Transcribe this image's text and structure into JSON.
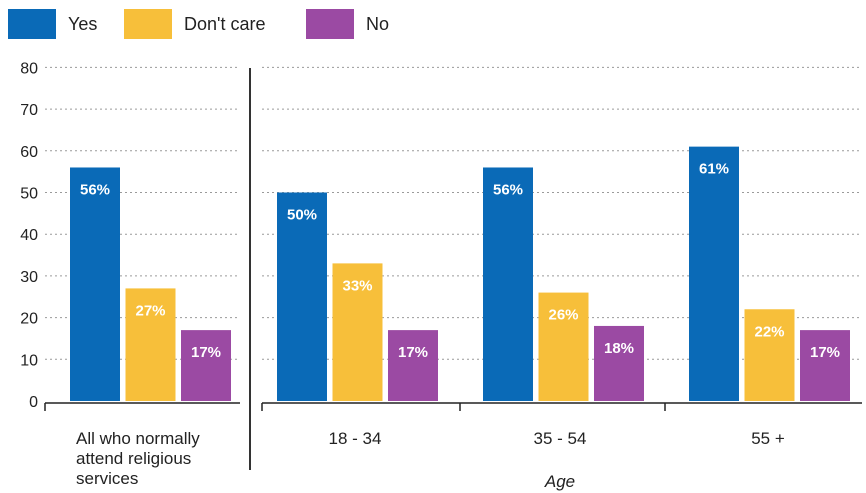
{
  "chart_data": {
    "type": "bar",
    "categories": [
      "All who normally attend religious services",
      "18 - 34",
      "35 - 54",
      "55 +"
    ],
    "series": [
      {
        "name": "Yes",
        "color": "#0a6ab7",
        "values": [
          56,
          50,
          56,
          61
        ],
        "labels": [
          "56%",
          "50%",
          "56%",
          "61%"
        ]
      },
      {
        "name": "Don't care",
        "color": "#f7bf3a",
        "values": [
          27,
          33,
          26,
          22
        ],
        "labels": [
          "27%",
          "33%",
          "26%",
          "22%"
        ]
      },
      {
        "name": "No",
        "color": "#9b4aa3",
        "values": [
          17,
          17,
          18,
          17
        ],
        "labels": [
          "17%",
          "17%",
          "18%",
          "17%"
        ]
      }
    ],
    "category_label_lines": [
      [
        "All who normally",
        "attend religious",
        "services"
      ],
      [
        "18 - 34"
      ],
      [
        "35 - 54"
      ],
      [
        "55 +"
      ]
    ],
    "xlabel": "Age",
    "ylabel": "",
    "ylim": [
      0,
      80
    ],
    "yticks": [
      0,
      10,
      20,
      30,
      40,
      50,
      60,
      70,
      80
    ],
    "grid": true,
    "legend_position": "top-left"
  }
}
